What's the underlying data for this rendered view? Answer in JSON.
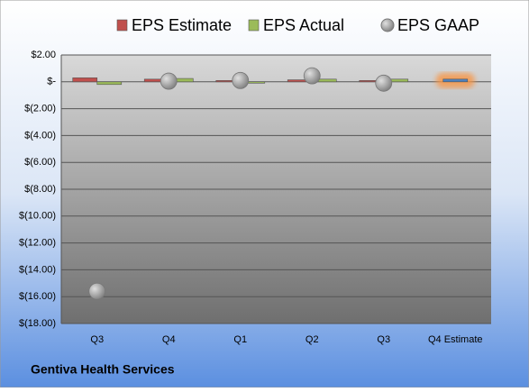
{
  "chart_data": {
    "type": "bar",
    "categories": [
      "Q3",
      "Q4",
      "Q1",
      "Q2",
      "Q3",
      "Q4 Estimate"
    ],
    "series": [
      {
        "name": "EPS Estimate",
        "color": "#c0504d",
        "values": [
          0.3,
          0.2,
          0.1,
          0.15,
          0.1,
          0.2
        ]
      },
      {
        "name": "EPS Actual",
        "color": "#9bbb59",
        "values": [
          -0.2,
          0.25,
          -0.1,
          0.2,
          0.2,
          null
        ]
      },
      {
        "name": "EPS GAAP",
        "color": "#a6a6a6",
        "marker": "circle",
        "values": [
          -15.6,
          0.05,
          0.1,
          0.45,
          -0.1,
          null
        ]
      }
    ],
    "highlight": {
      "index": 5,
      "color": "#4f81bd",
      "glow": "#f79646"
    },
    "ylim": [
      -18,
      2
    ],
    "yticks": [
      {
        "value": 2,
        "label": "$2.00"
      },
      {
        "value": 0,
        "label": "$-"
      },
      {
        "value": -2,
        "label": "$(2.00)"
      },
      {
        "value": -4,
        "label": "$(4.00)"
      },
      {
        "value": -6,
        "label": "$(6.00)"
      },
      {
        "value": -8,
        "label": "$(8.00)"
      },
      {
        "value": -10,
        "label": "$(10.00)"
      },
      {
        "value": -12,
        "label": "$(12.00)"
      },
      {
        "value": -14,
        "label": "$(14.00)"
      },
      {
        "value": -16,
        "label": "$(16.00)"
      },
      {
        "value": -18,
        "label": "$(18.00)"
      }
    ],
    "grid": true,
    "footer": "Gentiva Health Services"
  }
}
